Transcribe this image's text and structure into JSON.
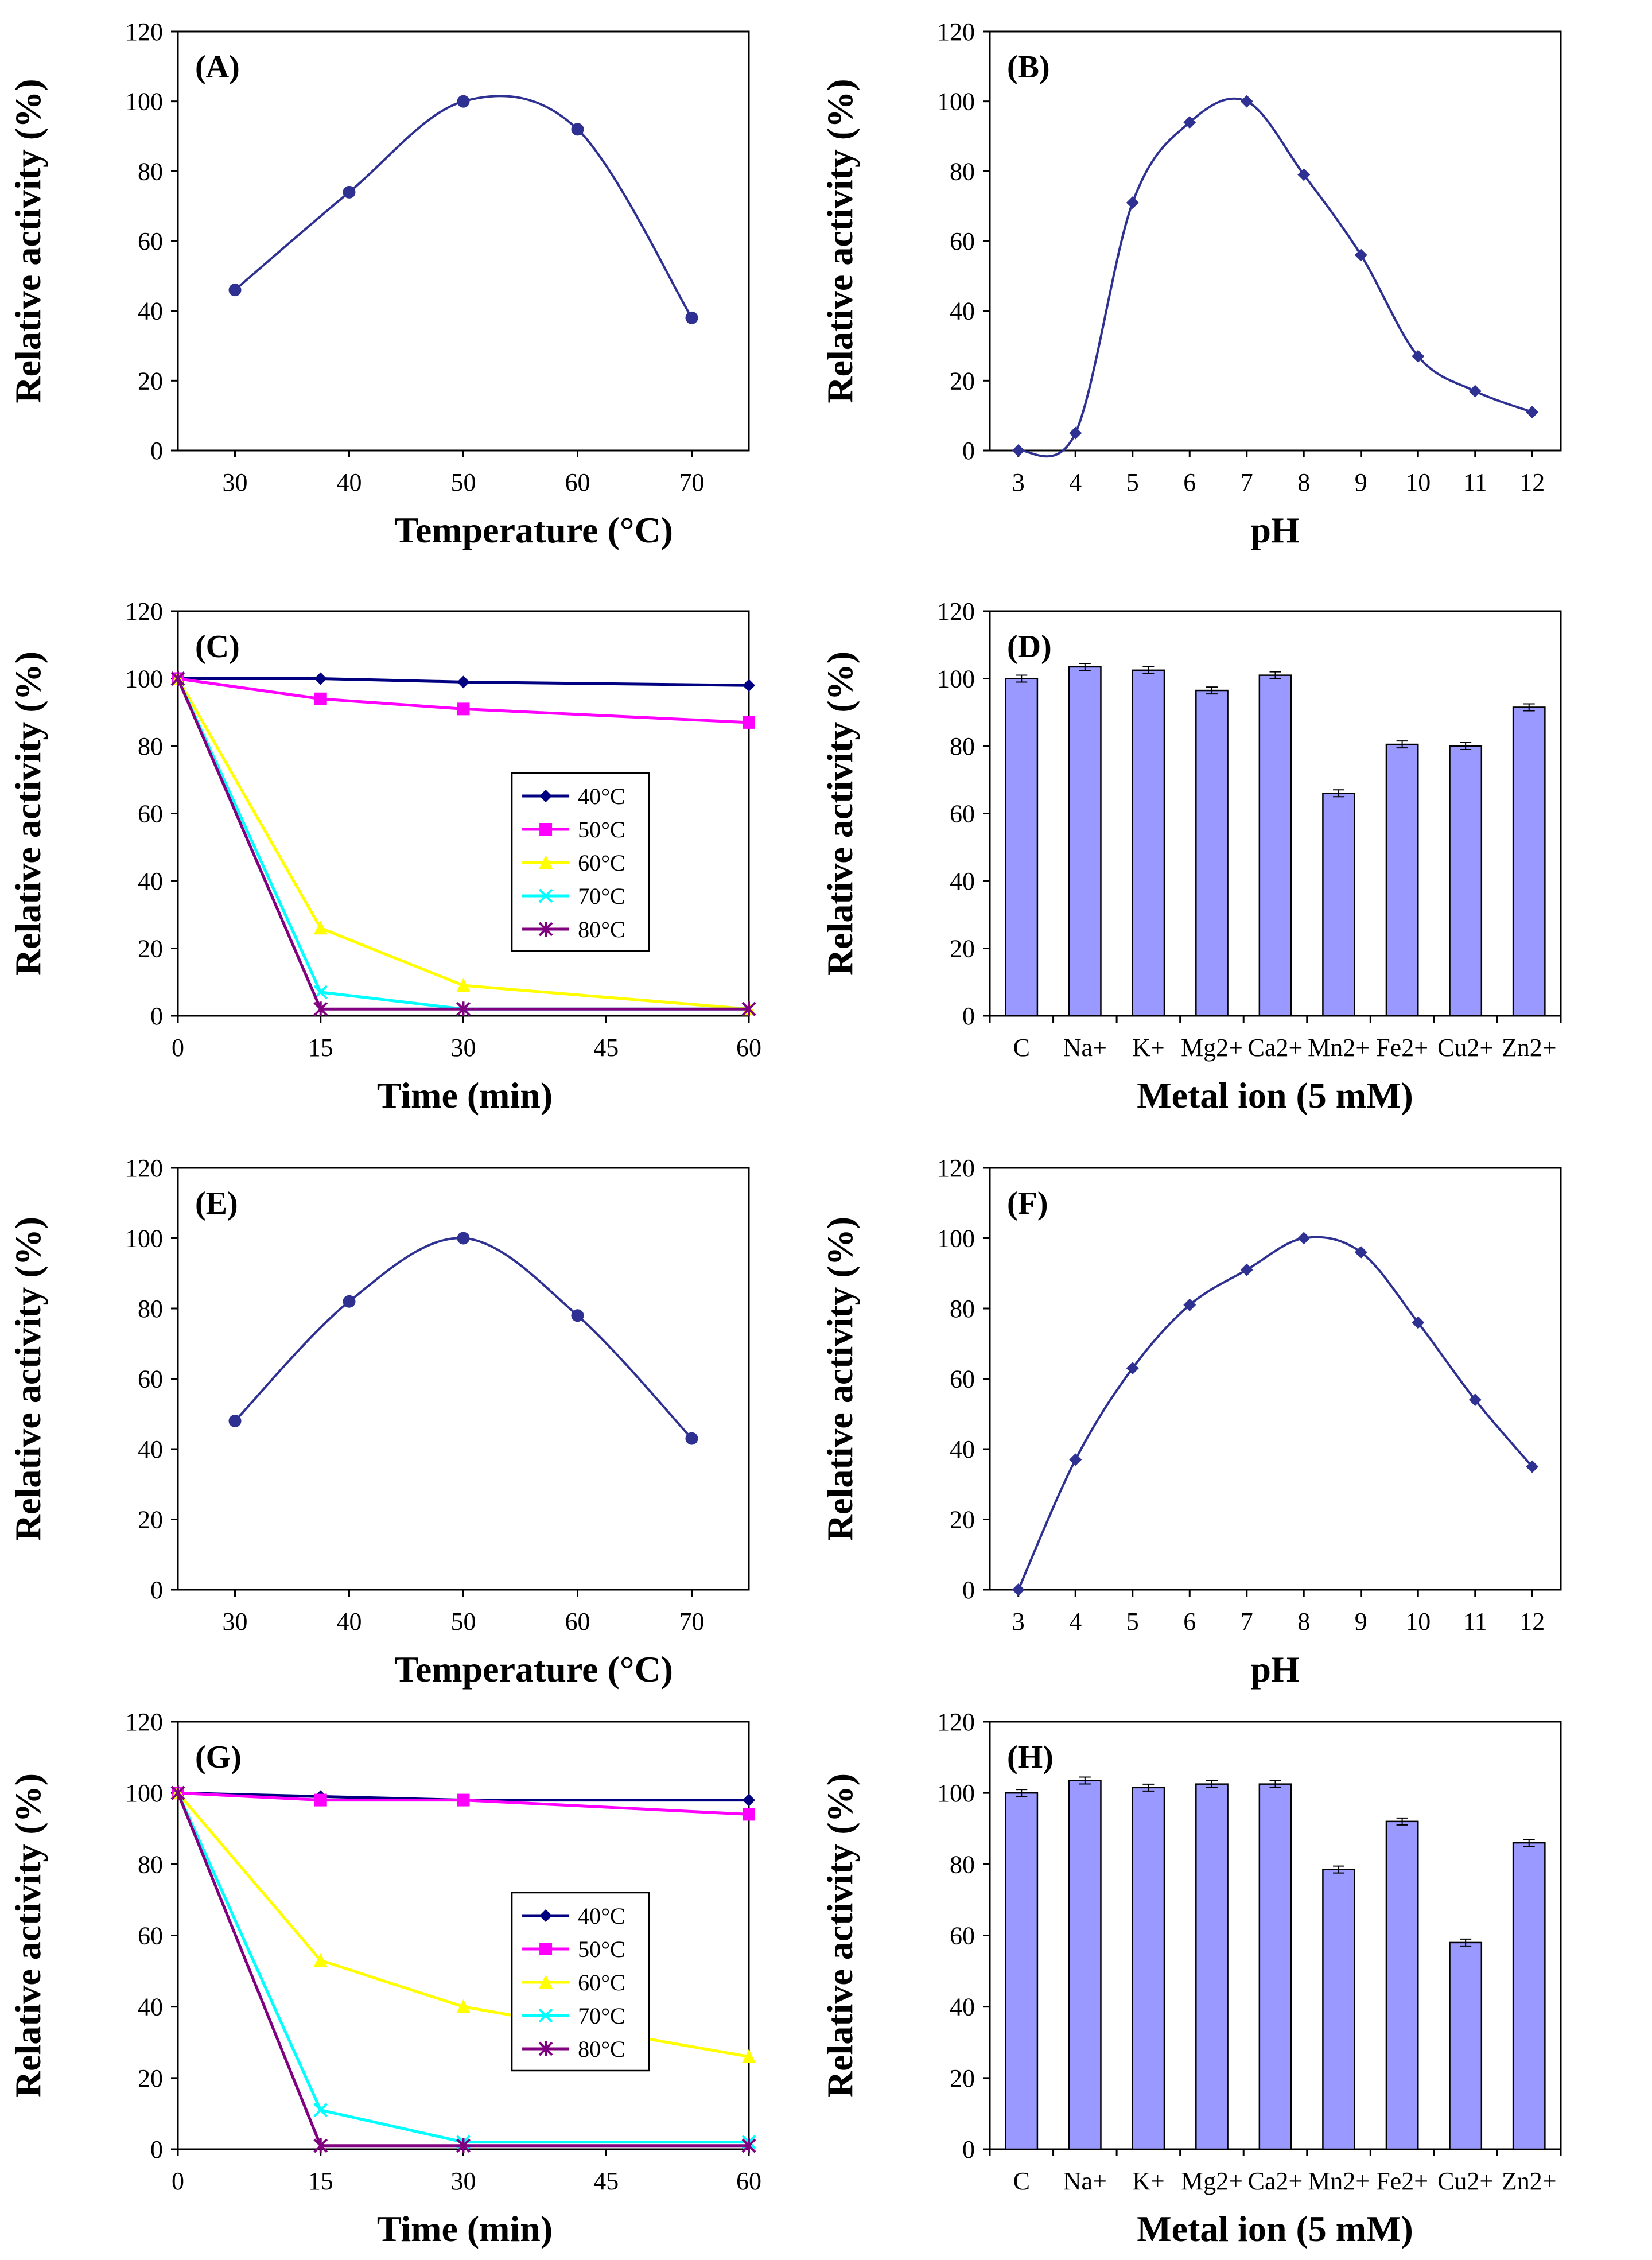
{
  "colors": {
    "curve": "#2E3192",
    "bar": "#9999FF",
    "series": {
      "40°C": "#000080",
      "50°C": "#FF00FF",
      "60°C": "#FFFF00",
      "70°C": "#00FFFF",
      "80°C": "#800080"
    }
  },
  "chart_data": [
    {
      "id": "A",
      "type": "line",
      "label": "(A)",
      "smooth": true,
      "xlabel": "Temperature (°C)",
      "ylabel": "Relative activity (%)",
      "xlim": [
        25,
        75
      ],
      "ylim": [
        0,
        120
      ],
      "xticks": [
        30,
        40,
        50,
        60,
        70
      ],
      "yticks": [
        0,
        20,
        40,
        60,
        80,
        100,
        120
      ],
      "x": [
        30,
        40,
        50,
        60,
        70
      ],
      "y": [
        46,
        74,
        100,
        92,
        38
      ],
      "marker": "circle"
    },
    {
      "id": "B",
      "type": "line",
      "label": "(B)",
      "smooth": true,
      "xlabel": "pH",
      "ylabel": "Relative activity (%)",
      "xlim": [
        2.5,
        12.5
      ],
      "ylim": [
        0,
        120
      ],
      "xticks": [
        3,
        4,
        5,
        6,
        7,
        8,
        9,
        10,
        11,
        12
      ],
      "yticks": [
        0,
        20,
        40,
        60,
        80,
        100,
        120
      ],
      "x": [
        3,
        4,
        5,
        6,
        7,
        8,
        9,
        10,
        11,
        12
      ],
      "y": [
        0,
        5,
        71,
        94,
        100,
        79,
        56,
        27,
        17,
        11
      ],
      "marker": "diamond"
    },
    {
      "id": "C",
      "type": "line",
      "label": "(C)",
      "smooth": false,
      "xlabel": "Time (min)",
      "ylabel": "Relative activity (%)",
      "xlim": [
        0,
        60
      ],
      "ylim": [
        0,
        120
      ],
      "xticks": [
        0,
        15,
        30,
        45,
        60
      ],
      "yticks": [
        0,
        20,
        40,
        60,
        80,
        100,
        120
      ],
      "x": [
        0,
        15,
        30,
        60
      ],
      "legend_position": "center-right",
      "series": [
        {
          "name": "40°C",
          "marker": "diamond",
          "values": [
            100,
            100,
            99,
            98
          ]
        },
        {
          "name": "50°C",
          "marker": "square",
          "values": [
            100,
            94,
            91,
            87
          ]
        },
        {
          "name": "60°C",
          "marker": "triangle",
          "values": [
            100,
            26,
            9,
            2
          ]
        },
        {
          "name": "70°C",
          "marker": "x",
          "values": [
            100,
            7,
            2,
            2
          ]
        },
        {
          "name": "80°C",
          "marker": "star",
          "values": [
            100,
            2,
            2,
            2
          ]
        }
      ]
    },
    {
      "id": "D",
      "type": "bar",
      "label": "(D)",
      "xlabel": "Metal ion (5 mM)",
      "ylabel": "Relative activity (%)",
      "ylim": [
        0,
        120
      ],
      "yticks": [
        0,
        20,
        40,
        60,
        80,
        100,
        120
      ],
      "categories": [
        "C",
        "Na+",
        "K+",
        "Mg2+",
        "Ca2+",
        "Mn2+",
        "Fe2+",
        "Cu2+",
        "Zn2+"
      ],
      "values": [
        100,
        103.5,
        102.5,
        96.5,
        101,
        66,
        80.5,
        80,
        91.5
      ]
    },
    {
      "id": "E",
      "type": "line",
      "label": "(E)",
      "smooth": true,
      "xlabel": "Temperature (°C)",
      "ylabel": "Relative activity (%)",
      "xlim": [
        25,
        75
      ],
      "ylim": [
        0,
        120
      ],
      "xticks": [
        30,
        40,
        50,
        60,
        70
      ],
      "yticks": [
        0,
        20,
        40,
        60,
        80,
        100,
        120
      ],
      "x": [
        30,
        40,
        50,
        60,
        70
      ],
      "y": [
        48,
        82,
        100,
        78,
        43
      ],
      "marker": "circle"
    },
    {
      "id": "F",
      "type": "line",
      "label": "(F)",
      "smooth": true,
      "xlabel": "pH",
      "ylabel": "Relative activity (%)",
      "xlim": [
        2.5,
        12.5
      ],
      "ylim": [
        0,
        120
      ],
      "xticks": [
        3,
        4,
        5,
        6,
        7,
        8,
        9,
        10,
        11,
        12
      ],
      "yticks": [
        0,
        20,
        40,
        60,
        80,
        100,
        120
      ],
      "x": [
        3,
        4,
        5,
        6,
        7,
        8,
        9,
        10,
        11,
        12
      ],
      "y": [
        0,
        37,
        63,
        81,
        91,
        100,
        96,
        76,
        54,
        35
      ],
      "marker": "diamond"
    },
    {
      "id": "G",
      "type": "line",
      "label": "(G)",
      "smooth": false,
      "xlabel": "Time (min)",
      "ylabel": "Relative activity (%)",
      "xlim": [
        0,
        60
      ],
      "ylim": [
        0,
        120
      ],
      "xticks": [
        0,
        15,
        30,
        45,
        60
      ],
      "yticks": [
        0,
        20,
        40,
        60,
        80,
        100,
        120
      ],
      "x": [
        0,
        15,
        30,
        60
      ],
      "legend_position": "center-right",
      "series": [
        {
          "name": "40°C",
          "marker": "diamond",
          "values": [
            100,
            99,
            98,
            98
          ]
        },
        {
          "name": "50°C",
          "marker": "square",
          "values": [
            100,
            98,
            98,
            94
          ]
        },
        {
          "name": "60°C",
          "marker": "triangle",
          "values": [
            100,
            53,
            40,
            26
          ]
        },
        {
          "name": "70°C",
          "marker": "x",
          "values": [
            100,
            11,
            2,
            2
          ]
        },
        {
          "name": "80°C",
          "marker": "star",
          "values": [
            100,
            1,
            1,
            1
          ]
        }
      ]
    },
    {
      "id": "H",
      "type": "bar",
      "label": "(H)",
      "xlabel": "Metal ion (5 mM)",
      "ylabel": "Relative activity (%)",
      "ylim": [
        0,
        120
      ],
      "yticks": [
        0,
        20,
        40,
        60,
        80,
        100,
        120
      ],
      "categories": [
        "C",
        "Na+",
        "K+",
        "Mg2+",
        "Ca2+",
        "Mn2+",
        "Fe2+",
        "Cu2+",
        "Zn2+"
      ],
      "values": [
        100,
        103.5,
        101.5,
        102.5,
        102.5,
        78.5,
        92,
        58,
        86
      ]
    }
  ]
}
